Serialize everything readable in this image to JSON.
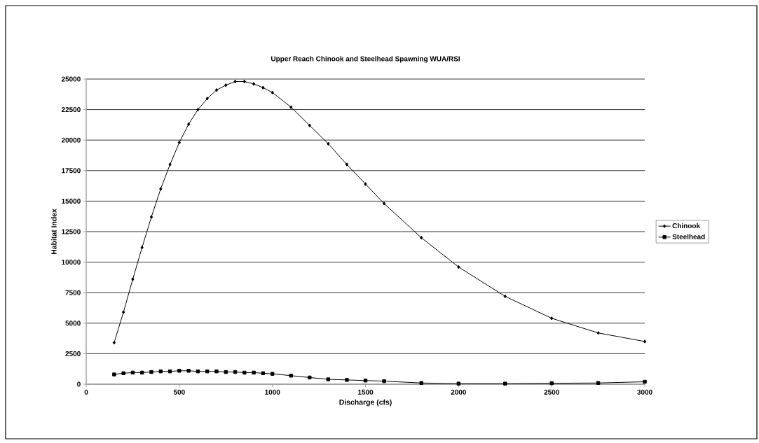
{
  "chart_data": {
    "type": "line",
    "title": "Upper Reach Chinook and Steelhead Spawning WUA/RSI",
    "xlabel": "Discharge (cfs)",
    "ylabel": "Habitat Index",
    "x": [
      150,
      200,
      250,
      300,
      350,
      400,
      450,
      500,
      550,
      600,
      650,
      700,
      750,
      800,
      850,
      900,
      950,
      1000,
      1100,
      1200,
      1300,
      1400,
      1500,
      1600,
      1800,
      2000,
      2250,
      2500,
      2750,
      3000
    ],
    "series": [
      {
        "name": "Chinook",
        "color": "#000000",
        "marker": "diamond",
        "values": [
          3400,
          5900,
          8600,
          11200,
          13700,
          16000,
          18000,
          19800,
          21300,
          22500,
          23400,
          24100,
          24500,
          24800,
          24800,
          24600,
          24300,
          23900,
          22700,
          21200,
          19700,
          18000,
          16400,
          14800,
          12000,
          9600,
          7200,
          5400,
          4200,
          3500
        ]
      },
      {
        "name": "Steelhead",
        "color": "#000000",
        "marker": "square",
        "values": [
          800,
          900,
          950,
          950,
          1000,
          1050,
          1050,
          1100,
          1100,
          1050,
          1050,
          1050,
          1000,
          1000,
          950,
          950,
          900,
          850,
          700,
          550,
          400,
          350,
          300,
          250,
          100,
          50,
          50,
          80,
          100,
          200
        ]
      }
    ],
    "xlim": [
      0,
      3000
    ],
    "ylim": [
      0,
      25000
    ],
    "xticks": [
      0,
      500,
      1000,
      1500,
      2000,
      2500,
      3000
    ],
    "yticks": [
      0,
      2500,
      5000,
      7500,
      10000,
      12500,
      15000,
      17500,
      20000,
      22500,
      25000
    ],
    "grid": "y",
    "legend": "right",
    "line_style": "solid"
  }
}
